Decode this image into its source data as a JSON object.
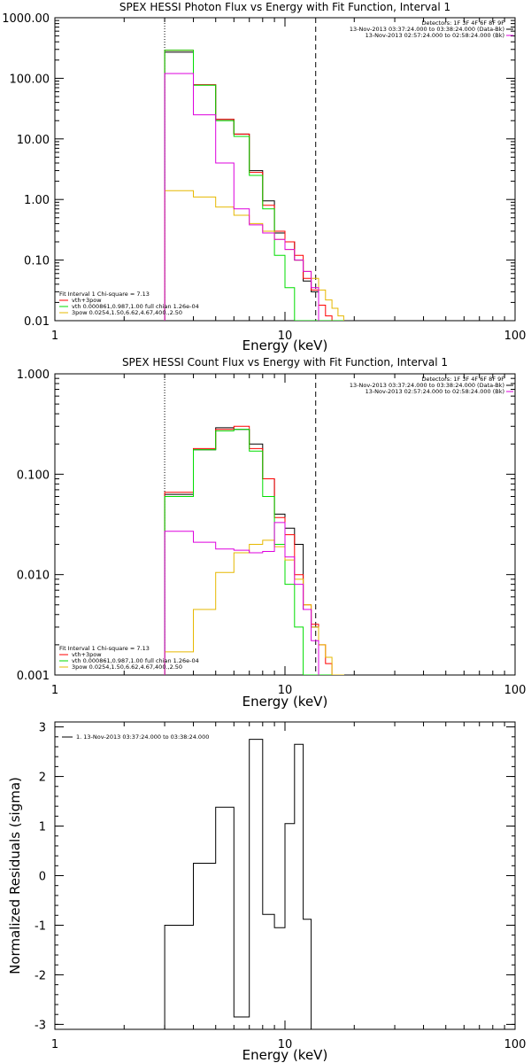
{
  "colors": {
    "data": "#000000",
    "total": "#ff0000",
    "thermal": "#00dd00",
    "nonthermal": "#e6b800",
    "background": "#dd00dd"
  },
  "chart_data": [
    {
      "type": "line",
      "title": "SPEX HESSI Photon Flux vs Energy with Fit Function, Interval 1",
      "xlabel": "Energy (keV)",
      "ylabel": "",
      "xscale": "log",
      "yscale": "log",
      "xlim": [
        1,
        100
      ],
      "ylim": [
        0.01,
        1000
      ],
      "xticks": [
        "1",
        "10",
        "100"
      ],
      "yticks": [
        "0.01",
        "0.10",
        "1.00",
        "10.00",
        "100.00",
        "1000.00"
      ],
      "header": [
        "Detectors: 1F 3F 4F 6F 8F 9F",
        "13-Nov-2013 03:37:24.000 to 03:38:24.000 (Data-Bk)",
        "13-Nov-2013 02:57:24.000 to 02:58:24.000 (Bk)"
      ],
      "legend": [
        "Fit Interval 1    Chi-square = 7.13",
        "vth+3pow",
        "vth 0.000861,0.987,1.00  full chian 1.26e-04",
        "3pow 0.0254,1.50,6.62,4.67,400.,2.50"
      ],
      "vlines": {
        "dotted": 3,
        "dashed": 13.6
      },
      "edges": [
        3,
        4,
        5,
        6,
        7,
        8,
        9,
        10,
        11,
        12,
        13,
        14,
        15,
        16,
        17,
        18
      ],
      "series": [
        {
          "name": "",
          "color": "data",
          "values": [
            270,
            78,
            21,
            12,
            3.0,
            0.95,
            0.28,
            0.2,
            0.1,
            0.045,
            0.03
          ]
        },
        {
          "name": "vth+3pow",
          "color": "total",
          "values": [
            290,
            78,
            21,
            12,
            2.8,
            0.8,
            0.3,
            0.2,
            0.12,
            0.05,
            0.032,
            0.018,
            0.012,
            0.01,
            0.01
          ]
        },
        {
          "name": "vth",
          "color": "thermal",
          "values": [
            290,
            77,
            20,
            11,
            2.5,
            0.7,
            0.12,
            0.035,
            0.01,
            0.01,
            0.01,
            0.01,
            0.01,
            0.01,
            0.01
          ]
        },
        {
          "name": "3pow",
          "color": "nonthermal",
          "values": [
            1.4,
            1.1,
            0.75,
            0.55,
            0.4,
            0.3,
            0.22,
            0.15,
            0.1,
            0.065,
            0.05,
            0.032,
            0.022,
            0.016,
            0.012
          ]
        },
        {
          "name": "",
          "color": "background",
          "values": [
            120,
            25,
            4,
            0.7,
            0.38,
            0.28,
            0.22,
            0.15,
            0.1,
            0.065,
            0.035
          ]
        }
      ]
    },
    {
      "type": "line",
      "title": "SPEX HESSI Count Flux vs Energy with Fit Function, Interval 1",
      "xlabel": "Energy (keV)",
      "ylabel": "",
      "xscale": "log",
      "yscale": "log",
      "xlim": [
        1,
        100
      ],
      "ylim": [
        0.001,
        1
      ],
      "xticks": [
        "1",
        "10",
        "100"
      ],
      "yticks": [
        "0.001",
        "0.010",
        "0.100",
        "1.000"
      ],
      "header": [
        "Detectors: 1F 3F 4F 6F 8F 9F",
        "13-Nov-2013 03:37:24.000 to 03:38:24.000 (Data-Bk)",
        "13-Nov-2013 02:57:24.000 to 02:58:24.000 (Bk)"
      ],
      "legend": [
        "Fit Interval 1    Chi-square = 7.13",
        "vth+3pow",
        "vth 0.000861,0.987,1.00  full chian 1.26e-04",
        "3pow 0.0254,1.50,6.62,4.67,400.,2.50"
      ],
      "vlines": {
        "dotted": 3,
        "dashed": 13.6
      },
      "edges": [
        3,
        4,
        5,
        6,
        7,
        8,
        9,
        10,
        11,
        12,
        13,
        14,
        15,
        16,
        17,
        18
      ],
      "series": [
        {
          "name": "",
          "color": "data",
          "values": [
            0.063,
            0.175,
            0.29,
            0.28,
            0.2,
            0.09,
            0.04,
            0.029,
            0.02,
            0.0045,
            0.003
          ]
        },
        {
          "name": "vth+3pow",
          "color": "total",
          "values": [
            0.066,
            0.18,
            0.28,
            0.3,
            0.18,
            0.09,
            0.037,
            0.025,
            0.01,
            0.005,
            0.0032,
            0.002,
            0.0013,
            0.001,
            0.001
          ]
        },
        {
          "name": "vth",
          "color": "thermal",
          "values": [
            0.06,
            0.175,
            0.27,
            0.28,
            0.17,
            0.06,
            0.02,
            0.008,
            0.003,
            0.001,
            0.001,
            0.001,
            0.001,
            0.001,
            0.001
          ]
        },
        {
          "name": "3pow",
          "color": "nonthermal",
          "values": [
            0.0017,
            0.0045,
            0.0105,
            0.0165,
            0.02,
            0.022,
            0.019,
            0.014,
            0.009,
            0.005,
            0.003,
            0.002,
            0.0015,
            0.001,
            0.001
          ]
        },
        {
          "name": "",
          "color": "background",
          "values": [
            0.027,
            0.021,
            0.018,
            0.0175,
            0.0165,
            0.017,
            0.033,
            0.015,
            0.008,
            0.0045,
            0.0022
          ]
        }
      ]
    },
    {
      "type": "line",
      "title": "",
      "xlabel": "Energy (keV)",
      "ylabel": "Normalized Residuals (sigma)",
      "xscale": "log",
      "yscale": "linear",
      "xlim": [
        1,
        100
      ],
      "ylim": [
        -3.1,
        3.1
      ],
      "xticks": [
        "1",
        "10",
        "100"
      ],
      "yticks": [
        "-3",
        "-2",
        "-1",
        "0",
        "1",
        "2",
        "3"
      ],
      "legend": [
        "1. 13-Nov-2013 03:37:24.000 to 03:38:24.000"
      ],
      "edges": [
        3,
        4,
        5,
        6,
        7,
        8,
        9,
        10,
        11,
        12,
        13
      ],
      "series": [
        {
          "name": "1. 13-Nov-2013 03:37:24.000 to 03:38:24.000",
          "color": "data",
          "values": [
            -1.0,
            0.25,
            1.38,
            -2.85,
            2.75,
            -0.78,
            -1.05,
            1.05,
            2.65,
            -0.88
          ]
        }
      ]
    }
  ]
}
